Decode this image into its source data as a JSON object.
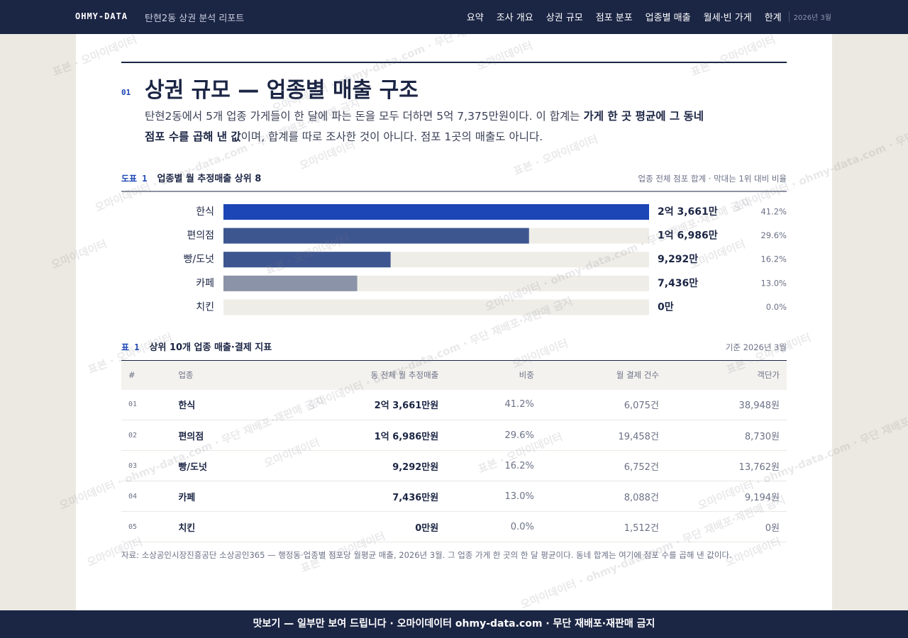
{
  "nav": {
    "brand": "OHMY-DATA",
    "report_title": "탄현2동 상권 분석 리포트",
    "items": [
      "요약",
      "조사 개요",
      "상권 규모",
      "점포 분포",
      "업종별 매출",
      "월세·빈 가게",
      "한계"
    ],
    "date": "2026년 3월"
  },
  "section": {
    "number": "01",
    "title": "상권 규모 — 업종별 매출 구조",
    "lead": [
      {
        "text": "탄현2동에서 5개 업종 가게들이 한 달에 파는 돈을 모두 더하면 5억 7,375만원이다. 이 합계는 ",
        "bold": false
      },
      {
        "text": "가게 한 곳 평균에 그 동네 점포 수를 곱해 낸 값",
        "bold": true
      },
      {
        "text": "이며, 합계를 따로 조사한 것이 아니다. 점포 1곳의 매출도 아니다.",
        "bold": false
      }
    ]
  },
  "chart_data": {
    "type": "hbar",
    "label": "도표 1",
    "title": "업종별 월 추정매출 상위 8",
    "note": "업종 전체 점포 합계 · 막대는 1위 대비 비율",
    "categories": [
      "한식",
      "편의점",
      "빵/도넛",
      "카페",
      "치킨"
    ],
    "values": [
      23661,
      16986,
      9292,
      7436,
      0
    ],
    "value_labels": [
      "2억 3,661만",
      "1억 6,986만",
      "9,292만",
      "7,436만",
      "0만"
    ],
    "shares": [
      "41.2%",
      "29.6%",
      "16.2%",
      "13.0%",
      "0.0%"
    ],
    "colors": [
      "#1c46b5",
      "#3e5690",
      "#3e5690",
      "#8a93a8",
      "#8a93a8"
    ],
    "xlim": [
      0,
      23661
    ]
  },
  "table": {
    "label": "표 1",
    "title": "상위 10개 업종 매출·결제 지표",
    "note": "기준 2026년 3월",
    "header": [
      "#",
      "업종",
      "동 전체 월 추정매출",
      "비중",
      "월 결제 건수",
      "객단가"
    ],
    "rows": [
      [
        "01",
        "한식",
        "2억 3,661만원",
        "41.2%",
        "6,075건",
        "38,948원"
      ],
      [
        "02",
        "편의점",
        "1억 6,986만원",
        "29.6%",
        "19,458건",
        "8,730원"
      ],
      [
        "03",
        "빵/도넛",
        "9,292만원",
        "16.2%",
        "6,752건",
        "13,762원"
      ],
      [
        "04",
        "카페",
        "7,436만원",
        "13.0%",
        "8,088건",
        "9,194원"
      ],
      [
        "05",
        "치킨",
        "0만원",
        "0.0%",
        "1,512건",
        "0원"
      ]
    ],
    "source": "자료: 소상공인시장진흥공단 소상공인365 — 행정동·업종별 점포당 월평균 매출, 2026년 3월. 그 업종 가게 한 곳의 한 달 평균이다. 동네 합계는 여기에 점포 수를 곱해 낸 값이다."
  },
  "footer": "맛보기 — 일부만 보여 드립니다 · 오마이데이터 ohmy-data.com · 무단 재배포·재판매 금지",
  "watermarks": [
    "표본 · 오마이데이터",
    "오마이데이터 · ohmy-data.com · 무단 재배포·재판매 금지",
    "오마이데이터"
  ]
}
